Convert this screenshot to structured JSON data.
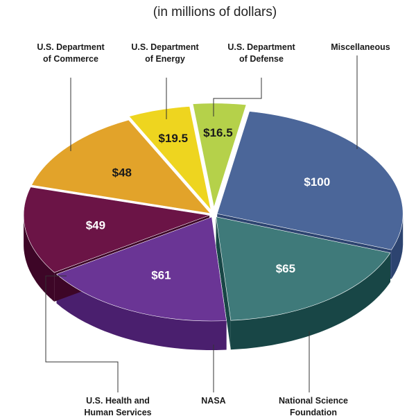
{
  "chart_data": {
    "type": "pie",
    "subtitle": "(in millions of dollars)",
    "unit": "$ millions",
    "slices": [
      {
        "label_lines": [
          "Miscellaneous"
        ],
        "value": 100,
        "value_label": "$100",
        "color": "#4b6699",
        "side": "#2d4470",
        "text_color": "#ffffff"
      },
      {
        "label_lines": [
          "National Science",
          "Foundation"
        ],
        "value": 65,
        "value_label": "$65",
        "color": "#3f7a7a",
        "side": "#184646",
        "text_color": "#ffffff"
      },
      {
        "label_lines": [
          "NASA"
        ],
        "value": 61,
        "value_label": "$61",
        "color": "#6a3595",
        "side": "#4a1f6e",
        "text_color": "#ffffff"
      },
      {
        "label_lines": [
          "U.S. Health and",
          "Human Services"
        ],
        "value": 49,
        "value_label": "$49",
        "color": "#6b1446",
        "side": "#3d0627",
        "text_color": "#ffffff"
      },
      {
        "label_lines": [
          "U.S. Department",
          "of Commerce"
        ],
        "value": 48,
        "value_label": "$48",
        "color": "#e2a32a",
        "side": "#a9741a",
        "text_color": "#1a1a1a"
      },
      {
        "label_lines": [
          "U.S. Department",
          "of Energy"
        ],
        "value": 19.5,
        "value_label": "$19.5",
        "color": "#eed51f",
        "side": "#b39e11",
        "text_color": "#1a1a1a"
      },
      {
        "label_lines": [
          "U.S. Department",
          "of Defense"
        ],
        "value": 16.5,
        "value_label": "$16.5",
        "color": "#b5d14a",
        "side": "#7f9a2a",
        "text_color": "#1a1a1a"
      }
    ]
  }
}
